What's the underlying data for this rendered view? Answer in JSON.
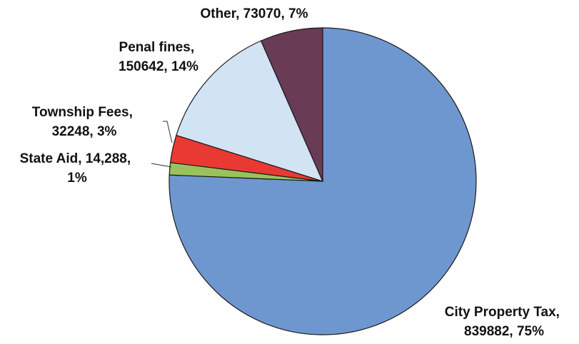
{
  "chart_data": {
    "type": "pie",
    "start": "top",
    "direction": "clockwise",
    "slices": [
      {
        "name": "City Property Tax",
        "value": 839882,
        "percent": "75%",
        "color": "#6f97cf",
        "label_lines": [
          "City Property Tax,",
          "839882, 75%"
        ]
      },
      {
        "name": "State Aid",
        "value": 14288,
        "percent": "1%",
        "color": "#9ac25c",
        "label_lines": [
          "State Aid, 14,288,",
          "1%"
        ]
      },
      {
        "name": "Township Fees",
        "value": 32248,
        "percent": "3%",
        "color": "#e83a33",
        "label_lines": [
          "Township Fees,",
          "32248, 3%"
        ]
      },
      {
        "name": "Penal fines",
        "value": 150642,
        "percent": "14%",
        "color": "#d2e4f4",
        "label_lines": [
          "Penal fines,",
          "150642, 14%"
        ]
      },
      {
        "name": "Other",
        "value": 73070,
        "percent": "7%",
        "color": "#6a3b55",
        "label_lines": [
          "Other, 73070, 7%"
        ]
      }
    ]
  }
}
